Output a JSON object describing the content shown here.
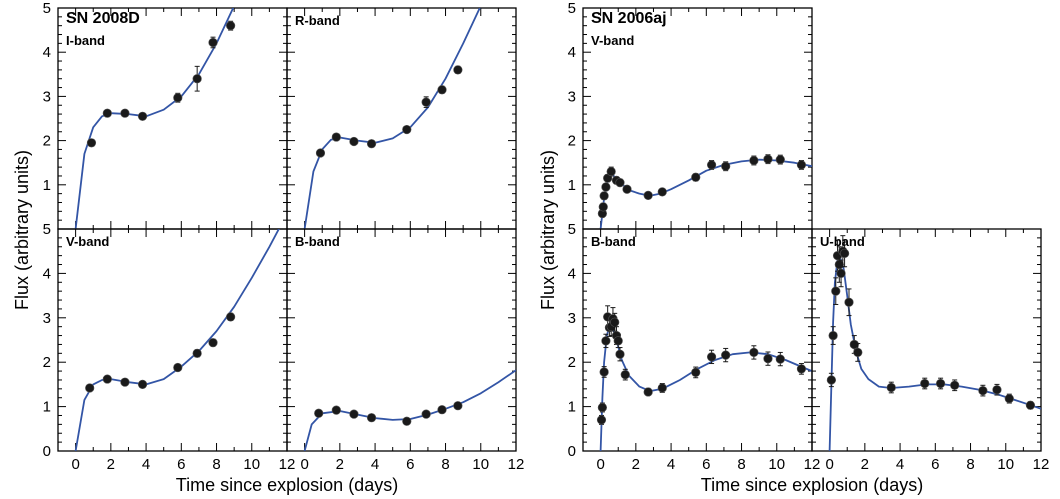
{
  "figure": {
    "y_axis_title": "Flux (arbitrary units)",
    "x_axis_title": "Time since explosion (days)",
    "colors": {
      "curve": "#3355a6",
      "marker": "#1a1a1a",
      "frame": "#000000"
    }
  },
  "chart_data": [
    {
      "type": "scatter",
      "group": "SN 2008D",
      "title": "SN 2008D",
      "band": "I-band",
      "xlim": [
        -1,
        12
      ],
      "ylim": [
        0,
        5
      ],
      "xticks": [],
      "yticks": [
        "1",
        "2",
        "3",
        "4",
        "5"
      ],
      "points": [
        [
          0.9,
          1.95,
          0.05
        ],
        [
          1.8,
          2.62,
          0.05
        ],
        [
          2.8,
          2.62,
          0.05
        ],
        [
          3.8,
          2.55,
          0.05
        ],
        [
          5.8,
          2.97,
          0.1
        ],
        [
          6.9,
          3.4,
          0.28
        ],
        [
          7.8,
          4.22,
          0.12
        ],
        [
          8.8,
          4.6,
          0.1
        ]
      ],
      "model": [
        [
          0,
          0
        ],
        [
          0.5,
          1.7
        ],
        [
          1,
          2.3
        ],
        [
          1.5,
          2.55
        ],
        [
          2,
          2.62
        ],
        [
          3,
          2.6
        ],
        [
          4,
          2.55
        ],
        [
          5,
          2.7
        ],
        [
          6,
          3.0
        ],
        [
          7,
          3.5
        ],
        [
          8,
          4.2
        ],
        [
          9,
          5.05
        ]
      ]
    },
    {
      "type": "scatter",
      "group": "SN 2008D",
      "title": "",
      "band": "R-band",
      "xlim": [
        -1,
        12
      ],
      "ylim": [
        0,
        5
      ],
      "xticks": [],
      "yticks": [],
      "points": [
        [
          0.9,
          1.72,
          0.05
        ],
        [
          1.8,
          2.08,
          0.05
        ],
        [
          2.8,
          1.98,
          0.05
        ],
        [
          3.8,
          1.93,
          0.05
        ],
        [
          5.8,
          2.25,
          0.05
        ],
        [
          6.9,
          2.87,
          0.12
        ],
        [
          7.8,
          3.15,
          0.08
        ],
        [
          8.7,
          3.6,
          0.08
        ]
      ],
      "model": [
        [
          0,
          0
        ],
        [
          0.5,
          1.3
        ],
        [
          1,
          1.8
        ],
        [
          1.5,
          2.02
        ],
        [
          2,
          2.07
        ],
        [
          3,
          2.0
        ],
        [
          4,
          1.95
        ],
        [
          5,
          2.05
        ],
        [
          6,
          2.3
        ],
        [
          7,
          2.75
        ],
        [
          8,
          3.4
        ],
        [
          9,
          4.2
        ],
        [
          10,
          5.05
        ]
      ]
    },
    {
      "type": "scatter",
      "group": "SN 2008D",
      "title": "",
      "band": "V-band",
      "xlim": [
        -1,
        12
      ],
      "ylim": [
        0,
        5
      ],
      "xticks": [
        "0",
        "2",
        "4",
        "6",
        "8",
        "10",
        "12"
      ],
      "yticks": [
        "0",
        "1",
        "2",
        "3",
        "4",
        "5"
      ],
      "points": [
        [
          0.8,
          1.42,
          0.05
        ],
        [
          1.8,
          1.62,
          0.05
        ],
        [
          2.8,
          1.55,
          0.05
        ],
        [
          3.8,
          1.5,
          0.05
        ],
        [
          5.8,
          1.88,
          0.05
        ],
        [
          6.9,
          2.2,
          0.08
        ],
        [
          7.8,
          2.44,
          0.08
        ],
        [
          8.8,
          3.02,
          0.08
        ]
      ],
      "model": [
        [
          0,
          0
        ],
        [
          0.5,
          1.15
        ],
        [
          1,
          1.5
        ],
        [
          1.5,
          1.6
        ],
        [
          2,
          1.62
        ],
        [
          3,
          1.55
        ],
        [
          4,
          1.5
        ],
        [
          5,
          1.62
        ],
        [
          6,
          1.9
        ],
        [
          7,
          2.25
        ],
        [
          8,
          2.7
        ],
        [
          9,
          3.25
        ],
        [
          10,
          3.9
        ],
        [
          11,
          4.6
        ],
        [
          11.6,
          5.05
        ]
      ]
    },
    {
      "type": "scatter",
      "group": "SN 2008D",
      "title": "",
      "band": "B-band",
      "xlim": [
        -1,
        12
      ],
      "ylim": [
        0,
        5
      ],
      "xticks": [
        "0",
        "2",
        "4",
        "6",
        "8",
        "10",
        "12"
      ],
      "yticks": [],
      "points": [
        [
          0.8,
          0.85,
          0.05
        ],
        [
          1.8,
          0.92,
          0.05
        ],
        [
          2.8,
          0.83,
          0.05
        ],
        [
          3.8,
          0.75,
          0.05
        ],
        [
          5.8,
          0.67,
          0.05
        ],
        [
          6.9,
          0.83,
          0.05
        ],
        [
          7.8,
          0.93,
          0.05
        ],
        [
          8.7,
          1.02,
          0.05
        ]
      ],
      "model": [
        [
          0,
          0
        ],
        [
          0.4,
          0.6
        ],
        [
          1,
          0.85
        ],
        [
          2,
          0.9
        ],
        [
          3,
          0.82
        ],
        [
          4,
          0.74
        ],
        [
          5,
          0.7
        ],
        [
          6,
          0.72
        ],
        [
          7,
          0.82
        ],
        [
          8,
          0.95
        ],
        [
          9,
          1.1
        ],
        [
          10,
          1.3
        ],
        [
          11,
          1.55
        ],
        [
          12,
          1.82
        ]
      ]
    },
    {
      "type": "scatter",
      "group": "SN 2006aj",
      "title": "SN 2006aj",
      "band": "V-band",
      "xlim": [
        -1,
        12
      ],
      "ylim": [
        0,
        5
      ],
      "xticks": [],
      "yticks": [
        "1",
        "2",
        "3",
        "4",
        "5"
      ],
      "points": [
        [
          0.1,
          0.35,
          0.08
        ],
        [
          0.15,
          0.5,
          0.08
        ],
        [
          0.2,
          0.75,
          0.08
        ],
        [
          0.3,
          0.95,
          0.08
        ],
        [
          0.4,
          1.15,
          0.08
        ],
        [
          0.6,
          1.3,
          0.1
        ],
        [
          0.9,
          1.1,
          0.08
        ],
        [
          1.1,
          1.05,
          0.08
        ],
        [
          1.5,
          0.9,
          0.05
        ],
        [
          2.7,
          0.76,
          0.05
        ],
        [
          3.5,
          0.84,
          0.05
        ],
        [
          5.4,
          1.17,
          0.08
        ],
        [
          6.3,
          1.45,
          0.1
        ],
        [
          7.1,
          1.42,
          0.1
        ],
        [
          8.7,
          1.55,
          0.1
        ],
        [
          9.5,
          1.58,
          0.1
        ],
        [
          10.2,
          1.57,
          0.1
        ],
        [
          11.4,
          1.45,
          0.1
        ]
      ],
      "model": [
        [
          0,
          0
        ],
        [
          0.2,
          0.7
        ],
        [
          0.4,
          1.1
        ],
        [
          0.6,
          1.25
        ],
        [
          0.8,
          1.18
        ],
        [
          1.2,
          1.02
        ],
        [
          1.6,
          0.88
        ],
        [
          2.2,
          0.8
        ],
        [
          2.8,
          0.75
        ],
        [
          3.4,
          0.8
        ],
        [
          4,
          0.9
        ],
        [
          5,
          1.1
        ],
        [
          6,
          1.32
        ],
        [
          7,
          1.45
        ],
        [
          8,
          1.53
        ],
        [
          9,
          1.57
        ],
        [
          10,
          1.55
        ],
        [
          11,
          1.5
        ],
        [
          12,
          1.42
        ]
      ]
    },
    {
      "type": "scatter",
      "group": "SN 2006aj",
      "title": "",
      "band": "B-band",
      "xlim": [
        -1,
        12
      ],
      "ylim": [
        0,
        5
      ],
      "xticks": [
        "0",
        "2",
        "4",
        "6",
        "8",
        "10",
        "12"
      ],
      "yticks": [
        "0",
        "1",
        "2",
        "3",
        "4",
        "5"
      ],
      "points": [
        [
          0.05,
          0.7,
          0.1
        ],
        [
          0.1,
          0.98,
          0.1
        ],
        [
          0.2,
          1.78,
          0.12
        ],
        [
          0.3,
          2.48,
          0.15
        ],
        [
          0.4,
          3.02,
          0.25
        ],
        [
          0.5,
          2.78,
          0.2
        ],
        [
          0.6,
          2.8,
          0.2
        ],
        [
          0.7,
          2.98,
          0.25
        ],
        [
          0.8,
          2.9,
          0.2
        ],
        [
          0.9,
          2.6,
          0.2
        ],
        [
          1.0,
          2.48,
          0.15
        ],
        [
          1.1,
          2.18,
          0.15
        ],
        [
          1.4,
          1.72,
          0.12
        ],
        [
          2.7,
          1.33,
          0.08
        ],
        [
          3.5,
          1.42,
          0.1
        ],
        [
          5.4,
          1.77,
          0.12
        ],
        [
          6.3,
          2.12,
          0.15
        ],
        [
          7.1,
          2.16,
          0.15
        ],
        [
          8.7,
          2.22,
          0.15
        ],
        [
          9.5,
          2.08,
          0.15
        ],
        [
          10.2,
          2.07,
          0.15
        ],
        [
          11.4,
          1.85,
          0.12
        ]
      ],
      "model": [
        [
          0,
          0
        ],
        [
          0.1,
          1.2
        ],
        [
          0.2,
          2.0
        ],
        [
          0.35,
          2.6
        ],
        [
          0.5,
          2.8
        ],
        [
          0.7,
          2.75
        ],
        [
          0.9,
          2.5
        ],
        [
          1.2,
          2.05
        ],
        [
          1.6,
          1.7
        ],
        [
          2.2,
          1.45
        ],
        [
          2.8,
          1.35
        ],
        [
          3.5,
          1.4
        ],
        [
          4.5,
          1.6
        ],
        [
          5.5,
          1.85
        ],
        [
          6.5,
          2.05
        ],
        [
          7.5,
          2.18
        ],
        [
          8.5,
          2.22
        ],
        [
          9.5,
          2.18
        ],
        [
          10.5,
          2.05
        ],
        [
          11.5,
          1.88
        ],
        [
          12,
          1.8
        ]
      ]
    },
    {
      "type": "scatter",
      "group": "SN 2006aj",
      "title": "",
      "band": "U-band",
      "xlim": [
        -1,
        12
      ],
      "ylim": [
        0,
        5
      ],
      "xticks": [
        "0",
        "2",
        "4",
        "6",
        "8",
        "10",
        "12"
      ],
      "yticks": [],
      "points": [
        [
          0.1,
          1.6,
          0.15
        ],
        [
          0.2,
          2.6,
          0.2
        ],
        [
          0.35,
          3.6,
          0.3
        ],
        [
          0.45,
          4.4,
          0.35
        ],
        [
          0.55,
          4.2,
          0.4
        ],
        [
          0.65,
          4.0,
          0.3
        ],
        [
          0.75,
          4.5,
          0.35
        ],
        [
          0.85,
          4.45,
          0.3
        ],
        [
          1.1,
          3.35,
          0.3
        ],
        [
          1.4,
          2.4,
          0.2
        ],
        [
          1.6,
          2.22,
          0.2
        ],
        [
          3.5,
          1.43,
          0.12
        ],
        [
          5.4,
          1.52,
          0.12
        ],
        [
          6.3,
          1.52,
          0.12
        ],
        [
          7.1,
          1.48,
          0.12
        ],
        [
          8.7,
          1.36,
          0.12
        ],
        [
          9.5,
          1.38,
          0.12
        ],
        [
          10.2,
          1.18,
          0.1
        ],
        [
          11.4,
          1.03,
          0.08
        ]
      ],
      "model": [
        [
          0,
          0
        ],
        [
          0.1,
          1.5
        ],
        [
          0.2,
          2.9
        ],
        [
          0.3,
          3.8
        ],
        [
          0.45,
          4.3
        ],
        [
          0.6,
          4.35
        ],
        [
          0.8,
          4.1
        ],
        [
          1.0,
          3.5
        ],
        [
          1.2,
          2.85
        ],
        [
          1.5,
          2.25
        ],
        [
          1.8,
          1.85
        ],
        [
          2.2,
          1.62
        ],
        [
          2.8,
          1.45
        ],
        [
          3.5,
          1.42
        ],
        [
          4.5,
          1.45
        ],
        [
          5.5,
          1.5
        ],
        [
          6.5,
          1.5
        ],
        [
          7.5,
          1.45
        ],
        [
          8.5,
          1.38
        ],
        [
          9.5,
          1.28
        ],
        [
          10.5,
          1.15
        ],
        [
          11.5,
          1.02
        ],
        [
          12,
          0.95
        ]
      ]
    }
  ]
}
